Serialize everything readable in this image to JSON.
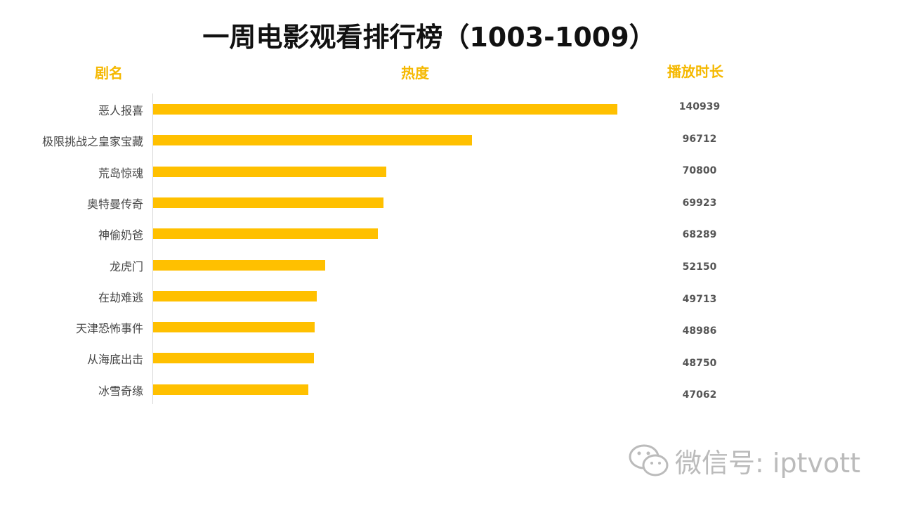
{
  "chart_data": {
    "type": "bar",
    "orientation": "horizontal",
    "title": "一周电影观看排行榜（1003-1009）",
    "column_headers": {
      "name": "剧名",
      "heat": "热度",
      "duration": "播放时长"
    },
    "categories": [
      "恶人报喜",
      "极限挑战之皇家宝藏",
      "荒岛惊魂",
      "奥特曼传奇",
      "神偷奶爸",
      "龙虎门",
      "在劫难逃",
      "天津恐怖事件",
      "从海底出击",
      "冰雪奇缘"
    ],
    "values": [
      140939,
      96712,
      70800,
      69923,
      68289,
      52150,
      49713,
      48986,
      48750,
      47062
    ],
    "value_labels": [
      "140939",
      "96712",
      "70800",
      "69923",
      "68289",
      "52150",
      "49713",
      "48986",
      "48750",
      "47062"
    ],
    "bar_color": "#ffc000",
    "grid": false
  },
  "watermark": "微信号: iptvott"
}
